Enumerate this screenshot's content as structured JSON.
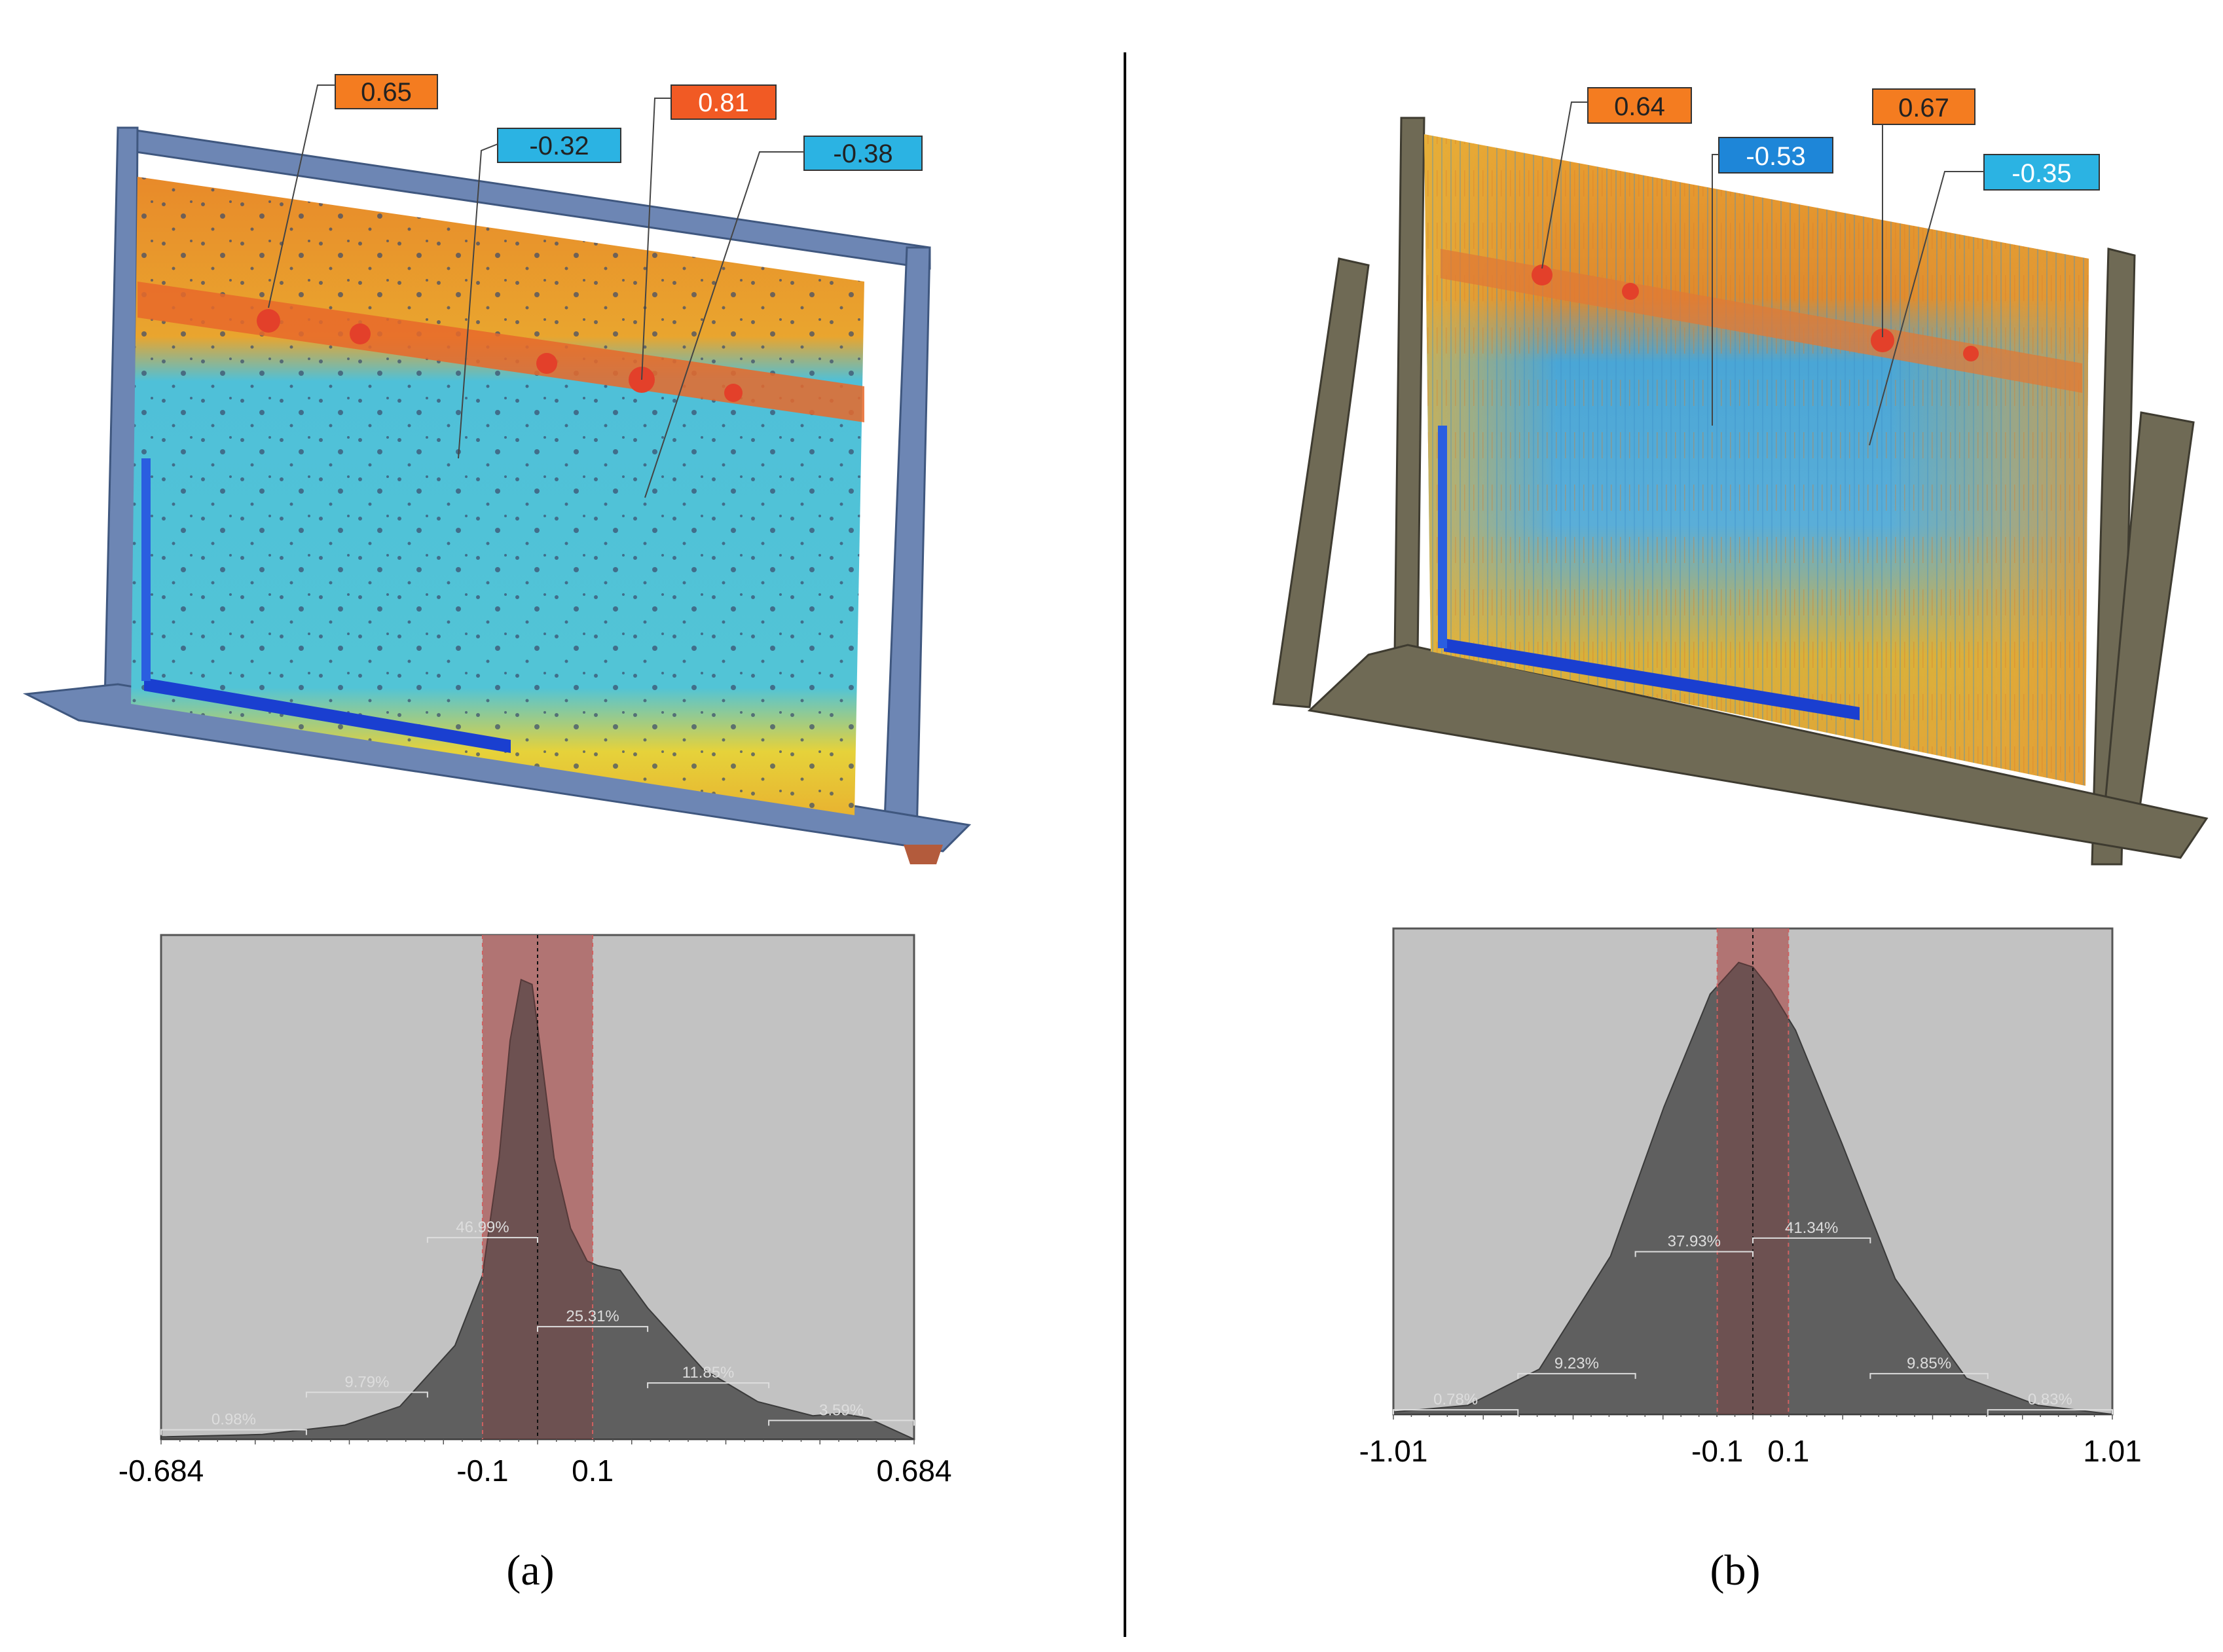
{
  "panels": [
    {
      "id": "a",
      "caption": "(a)",
      "callouts": [
        {
          "label": "0.65",
          "color": "#f47c20"
        },
        {
          "label": "-0.32",
          "color": "#2bb3e3"
        },
        {
          "label": "0.81",
          "color": "#f15a24"
        },
        {
          "label": "-0.38",
          "color": "#2bb3e3"
        }
      ],
      "frame_color": "#6d86b4",
      "colormap": {
        "high": "#e8682a",
        "mid": "#f2d43a",
        "low": "#4fc0d8",
        "lowest": "#1a3fd0"
      }
    },
    {
      "id": "b",
      "caption": "(b)",
      "callouts": [
        {
          "label": "0.64",
          "color": "#f47c20"
        },
        {
          "label": "-0.53",
          "color": "#1e86d8"
        },
        {
          "label": "0.67",
          "color": "#f47c20"
        },
        {
          "label": "-0.35",
          "color": "#2bb3e3"
        }
      ],
      "frame_color": "#6f6a55",
      "colormap": {
        "high": "#e8682a",
        "mid": "#e6c43a",
        "low": "#5aaed8",
        "lowest": "#1a3fd0"
      }
    }
  ],
  "chart_data": [
    {
      "type": "area",
      "xlim": [
        -0.684,
        0.684
      ],
      "tick_labels": [
        "-0.684",
        "-0.1",
        "0.1",
        "0.684"
      ],
      "tick_values": [
        -0.684,
        -0.1,
        0.1,
        0.684
      ],
      "tolerance_band": [
        -0.1,
        0.1
      ],
      "center_line": 0.0,
      "curve": {
        "x": [
          -0.684,
          -0.5,
          -0.35,
          -0.25,
          -0.15,
          -0.1,
          -0.07,
          -0.05,
          -0.03,
          -0.01,
          0.0,
          0.03,
          0.06,
          0.09,
          0.11,
          0.15,
          0.2,
          0.3,
          0.4,
          0.5,
          0.55,
          0.6,
          0.684
        ],
        "y": [
          0.005,
          0.01,
          0.03,
          0.07,
          0.2,
          0.35,
          0.6,
          0.85,
          0.98,
          0.97,
          0.88,
          0.6,
          0.45,
          0.38,
          0.37,
          0.36,
          0.28,
          0.15,
          0.08,
          0.05,
          0.055,
          0.045,
          0.0
        ]
      },
      "bin_labels": [
        "0.98%",
        "9.79%",
        "46.99%",
        "25.31%",
        "11.85%",
        "3.59%"
      ],
      "bins": [
        {
          "label": "0.98%",
          "x0": -0.684,
          "x1": -0.42,
          "level": 0.02
        },
        {
          "label": "9.79%",
          "x0": -0.42,
          "x1": -0.2,
          "level": 0.1
        },
        {
          "label": "46.99%",
          "x0": -0.2,
          "x1": 0.0,
          "level": 0.43
        },
        {
          "label": "25.31%",
          "x0": 0.0,
          "x1": 0.2,
          "level": 0.24
        },
        {
          "label": "11.85%",
          "x0": 0.2,
          "x1": 0.42,
          "level": 0.12
        },
        {
          "label": "3.59%",
          "x0": 0.42,
          "x1": 0.684,
          "level": 0.04
        }
      ]
    },
    {
      "type": "area",
      "xlim": [
        -1.01,
        1.01
      ],
      "tick_labels": [
        "-1.01",
        "-0.1",
        "0.1",
        "1.01"
      ],
      "tick_values": [
        -1.01,
        -0.1,
        0.1,
        1.01
      ],
      "tolerance_band": [
        -0.1,
        0.1
      ],
      "center_line": 0.0,
      "curve": {
        "x": [
          -1.01,
          -0.8,
          -0.6,
          -0.4,
          -0.25,
          -0.12,
          -0.04,
          0.0,
          0.05,
          0.12,
          0.25,
          0.4,
          0.6,
          0.8,
          1.01
        ],
        "y": [
          0.005,
          0.02,
          0.1,
          0.35,
          0.68,
          0.93,
          1.0,
          0.99,
          0.94,
          0.85,
          0.6,
          0.3,
          0.08,
          0.02,
          0.0
        ]
      },
      "bin_labels": [
        "0.78%",
        "9.23%",
        "37.93%",
        "41.34%",
        "9.85%",
        "0.83%"
      ],
      "bins": [
        {
          "label": "0.78%",
          "x0": -1.01,
          "x1": -0.66,
          "level": 0.01
        },
        {
          "label": "9.23%",
          "x0": -0.66,
          "x1": -0.33,
          "level": 0.09
        },
        {
          "label": "37.93%",
          "x0": -0.33,
          "x1": 0.0,
          "level": 0.36
        },
        {
          "label": "41.34%",
          "x0": 0.0,
          "x1": 0.33,
          "level": 0.39
        },
        {
          "label": "9.85%",
          "x0": 0.33,
          "x1": 0.66,
          "level": 0.09
        },
        {
          "label": "0.83%",
          "x0": 0.66,
          "x1": 1.01,
          "level": 0.01
        }
      ]
    }
  ]
}
